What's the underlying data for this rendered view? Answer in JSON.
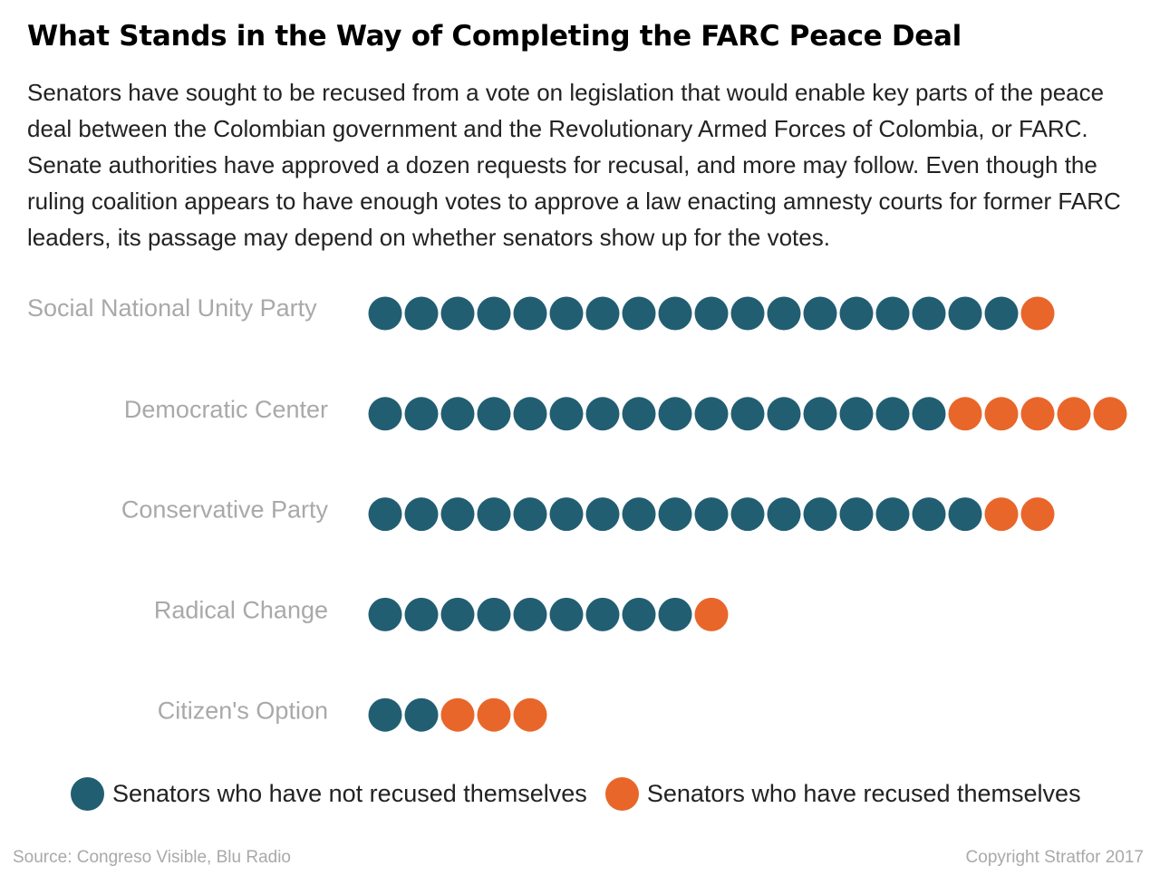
{
  "title": "What Stands in the Way of Completing the FARC Peace Deal",
  "subtitle": "Senators have sought to be recused from a vote on legislation that would enable key parts of the peace deal between the Colombian government and the Revolutionary Armed Forces of Colombia, or FARC. Senate authorities have approved a dozen requests for recusal, and more may follow. Even though the ruling coalition appears to have enough votes to approve a law enacting amnesty courts for former FARC leaders, its passage may depend on whether senators show up for the votes.",
  "source": "Source: Congreso Visible, Blu Radio",
  "copyright": "Copyright Stratfor 2017",
  "colors": {
    "not_recused": "#225e72",
    "recused": "#e8662a"
  },
  "chart_data": {
    "type": "dot",
    "categories": [
      "Social National Unity Party",
      "Democratic Center",
      "Conservative Party",
      "Radical Change",
      "Citizen's Option"
    ],
    "series": [
      {
        "name": "Senators who have not recused themselves",
        "values": [
          18,
          16,
          17,
          9,
          2
        ]
      },
      {
        "name": "Senators who have recused themselves",
        "values": [
          1,
          5,
          2,
          1,
          3
        ]
      }
    ],
    "legend": "bottom"
  }
}
